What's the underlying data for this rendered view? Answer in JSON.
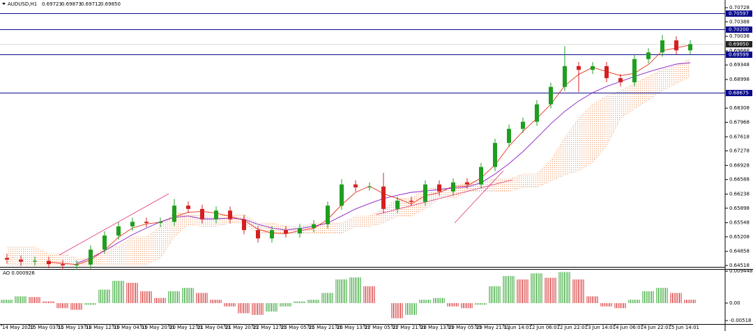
{
  "chart_data": [
    {
      "type": "candlestick",
      "title": "AUDUSD,H1",
      "header_values": [
        "0.69723",
        "0.69873",
        "0.69712",
        "0.69850"
      ],
      "categories": [
        "14 May 2020",
        null,
        "15 May 03:01",
        null,
        "15 May 19:01",
        null,
        "18 May 12:01",
        null,
        "19 May 04:01",
        null,
        "19 May 20:01",
        null,
        "20 May 12:01",
        null,
        "21 May 04:01",
        null,
        "21 May 20:01",
        null,
        "22 May 12:01",
        null,
        "25 May 05:01",
        null,
        "25 May 21:01",
        null,
        "26 May 13:01",
        null,
        "27 May 05:01",
        null,
        "27 May 21:01",
        null,
        "28 May 13:01",
        null,
        "29 May 05:01",
        null,
        "29 May 21:01",
        null,
        "1 Jun 14:01",
        null,
        "2 Jun 06:01",
        null,
        "2 Jun 22:01",
        null,
        "3 Jun 14:01",
        null,
        "4 Jun 06:01",
        null,
        "4 Jun 22:01",
        null,
        "5 Jun 14:01",
        null
      ],
      "open": [
        0.647,
        0.6466,
        0.6461,
        0.6463,
        0.6455,
        0.6452,
        0.6454,
        0.649,
        0.6524,
        0.6546,
        0.6557,
        0.6554,
        0.6557,
        0.6596,
        0.6588,
        0.6563,
        0.6584,
        0.6563,
        0.6537,
        0.6517,
        0.6537,
        0.6529,
        0.6542,
        0.6551,
        0.6596,
        0.6647,
        0.664,
        0.6642,
        0.6588,
        0.6608,
        0.6605,
        0.6647,
        0.663,
        0.6652,
        0.6647,
        0.6689,
        0.6747,
        0.6781,
        0.6798,
        0.684,
        0.6882,
        0.6932,
        0.6923,
        0.6932,
        0.6903,
        0.6893,
        0.6949,
        0.6965,
        0.6994,
        0.697
      ],
      "high": [
        0.648,
        0.6476,
        0.6473,
        0.6473,
        0.6465,
        0.6464,
        0.65,
        0.6534,
        0.6556,
        0.6567,
        0.6567,
        0.6567,
        0.6612,
        0.6606,
        0.6598,
        0.6594,
        0.6594,
        0.6573,
        0.6547,
        0.6547,
        0.6547,
        0.6552,
        0.6561,
        0.6606,
        0.666,
        0.6657,
        0.6652,
        0.6675,
        0.6618,
        0.6618,
        0.6657,
        0.6657,
        0.6662,
        0.6662,
        0.6699,
        0.6757,
        0.6791,
        0.6808,
        0.685,
        0.6892,
        0.698,
        0.6942,
        0.6942,
        0.6942,
        0.6913,
        0.696,
        0.6975,
        0.7007,
        0.7004,
        0.6995
      ],
      "low": [
        0.6456,
        0.6451,
        0.6451,
        0.6445,
        0.6442,
        0.6442,
        0.6444,
        0.648,
        0.6514,
        0.6536,
        0.6544,
        0.6544,
        0.6547,
        0.6578,
        0.6553,
        0.6553,
        0.6553,
        0.6527,
        0.6507,
        0.6507,
        0.6519,
        0.6519,
        0.6532,
        0.6541,
        0.6586,
        0.663,
        0.6632,
        0.6578,
        0.6578,
        0.6595,
        0.6595,
        0.662,
        0.662,
        0.6637,
        0.6637,
        0.6679,
        0.6737,
        0.6771,
        0.6788,
        0.683,
        0.6872,
        0.687,
        0.6913,
        0.6893,
        0.6883,
        0.6883,
        0.6939,
        0.6955,
        0.696,
        0.696
      ],
      "close": [
        0.6466,
        0.6461,
        0.6463,
        0.6455,
        0.6452,
        0.6454,
        0.649,
        0.6524,
        0.6546,
        0.6557,
        0.6554,
        0.6557,
        0.6596,
        0.6588,
        0.6563,
        0.6584,
        0.6563,
        0.6537,
        0.6517,
        0.6537,
        0.6529,
        0.6542,
        0.6551,
        0.6596,
        0.6647,
        0.664,
        0.6642,
        0.6588,
        0.6608,
        0.6605,
        0.6647,
        0.663,
        0.6652,
        0.6647,
        0.6689,
        0.6747,
        0.6781,
        0.6798,
        0.684,
        0.6882,
        0.6932,
        0.6923,
        0.6932,
        0.6903,
        0.6893,
        0.6949,
        0.6965,
        0.6994,
        0.697,
        0.6985
      ],
      "up_color": "#1f9e1f",
      "down_color": "#d42020",
      "lines": [
        {
          "color": "#e8311a",
          "values": [
            null,
            null,
            null,
            0.646,
            0.6457,
            0.6454,
            0.6465,
            0.6489,
            0.652,
            0.6542,
            0.6552,
            0.6556,
            0.6569,
            0.658,
            0.6582,
            0.6578,
            0.657,
            0.6561,
            0.6539,
            0.653,
            0.6528,
            0.6536,
            0.6541,
            0.6563,
            0.6598,
            0.6628,
            0.6643,
            0.6625,
            0.6613,
            0.66,
            0.662,
            0.6627,
            0.6643,
            0.6643,
            0.6663,
            0.6694,
            0.6739,
            0.6775,
            0.6806,
            0.684,
            0.6885,
            0.6912,
            0.6929,
            0.6919,
            0.6909,
            0.6915,
            0.6936,
            0.6969,
            0.6976,
            0.6983
          ]
        },
        {
          "color": "#8a1ec8",
          "values": [
            null,
            null,
            null,
            null,
            null,
            0.6457,
            0.647,
            0.6487,
            0.6507,
            0.6526,
            0.6542,
            0.6557,
            0.6568,
            0.6571,
            0.6564,
            0.6564,
            0.6566,
            0.6563,
            0.6551,
            0.6542,
            0.6537,
            0.6541,
            0.6546,
            0.6554,
            0.6571,
            0.6588,
            0.6601,
            0.6613,
            0.6621,
            0.6628,
            0.6631,
            0.6635,
            0.6638,
            0.6641,
            0.6651,
            0.6672,
            0.6697,
            0.6726,
            0.6759,
            0.6793,
            0.6823,
            0.6848,
            0.6868,
            0.6883,
            0.6895,
            0.6907,
            0.6918,
            0.6928,
            0.6937,
            0.694
          ]
        }
      ],
      "cloud": {
        "color": "#f0a070",
        "upper": [
          0.6496,
          0.6496,
          0.6496,
          0.648,
          0.648,
          0.647,
          0.647,
          0.6496,
          0.6496,
          0.6521,
          0.6521,
          0.6546,
          0.658,
          0.6575,
          0.6571,
          0.6571,
          0.6575,
          0.6575,
          0.6554,
          0.6554,
          0.6546,
          0.6546,
          0.6554,
          0.6554,
          0.6554,
          0.6571,
          0.6571,
          0.6588,
          0.6613,
          0.6613,
          0.6638,
          0.6638,
          0.6638,
          0.6655,
          0.6655,
          0.666,
          0.666,
          0.6672,
          0.6672,
          0.6705,
          0.676,
          0.6806,
          0.684,
          0.686,
          0.6873,
          0.689,
          0.6907,
          0.6924,
          0.6935,
          0.6949
        ],
        "lower": [
          0.6453,
          0.6453,
          0.6453,
          0.6453,
          0.6453,
          0.6453,
          0.6453,
          0.6453,
          0.6453,
          0.6453,
          0.6453,
          0.647,
          0.6521,
          0.655,
          0.6546,
          0.6546,
          0.6554,
          0.6554,
          0.6529,
          0.6529,
          0.6529,
          0.6529,
          0.6529,
          0.6529,
          0.6529,
          0.6546,
          0.6546,
          0.6554,
          0.6571,
          0.6571,
          0.6588,
          0.6613,
          0.6613,
          0.663,
          0.663,
          0.663,
          0.663,
          0.664,
          0.664,
          0.6655,
          0.667,
          0.668,
          0.67,
          0.674,
          0.6806,
          0.683,
          0.685,
          0.6873,
          0.689,
          0.6907
        ]
      },
      "levels": [
        {
          "value": 0.70597,
          "label": "0.70597"
        },
        {
          "value": 0.702,
          "label": "0.70200"
        },
        {
          "value": 0.69599,
          "label": "0.69599"
        },
        {
          "value": 0.68675,
          "label": "0.68675"
        }
      ],
      "level_color": "#0a0a8c",
      "current_price": {
        "value": 0.6985,
        "label": "0.69850"
      },
      "ylim": [
        0.64484,
        0.70913
      ],
      "yticks": [
        0.70728,
        0.70388,
        0.70038,
        0.69688,
        0.69348,
        0.68998,
        0.68308,
        0.67968,
        0.67618,
        0.67278,
        0.66928,
        0.66588,
        0.66238,
        0.65898,
        0.65548,
        0.65208,
        0.64858,
        0.64518
      ]
    },
    {
      "type": "bar",
      "title": "AO 0.000926",
      "up_color": "#1f9e1f",
      "down_color": "#d42020",
      "values": [
        0.001,
        0.002,
        0.0018,
        0.0005,
        -0.0015,
        -0.002,
        -0.0005,
        0.004,
        0.0066,
        0.006,
        0.0035,
        0.0015,
        0.0035,
        0.0045,
        0.003,
        0.001,
        -0.001,
        -0.003,
        -0.0035,
        -0.0025,
        -0.001,
        0.0005,
        0.001,
        0.003,
        0.007,
        0.0076,
        0.005,
        0.0,
        -0.0045,
        -0.0035,
        0.001,
        0.0015,
        -0.001,
        -0.0015,
        -0.0005,
        0.005,
        0.008,
        0.007,
        0.0088,
        0.0075,
        0.0092,
        0.007,
        0.002,
        -0.001,
        -0.0015,
        0.001,
        0.0035,
        0.0045,
        0.003,
        0.001
      ],
      "ylim": [
        -0.0062,
        0.0101
      ],
      "yticks": [
        0.009448,
        {
          "value": 0,
          "label": "0.00"
        },
        -0.00518
      ]
    }
  ]
}
